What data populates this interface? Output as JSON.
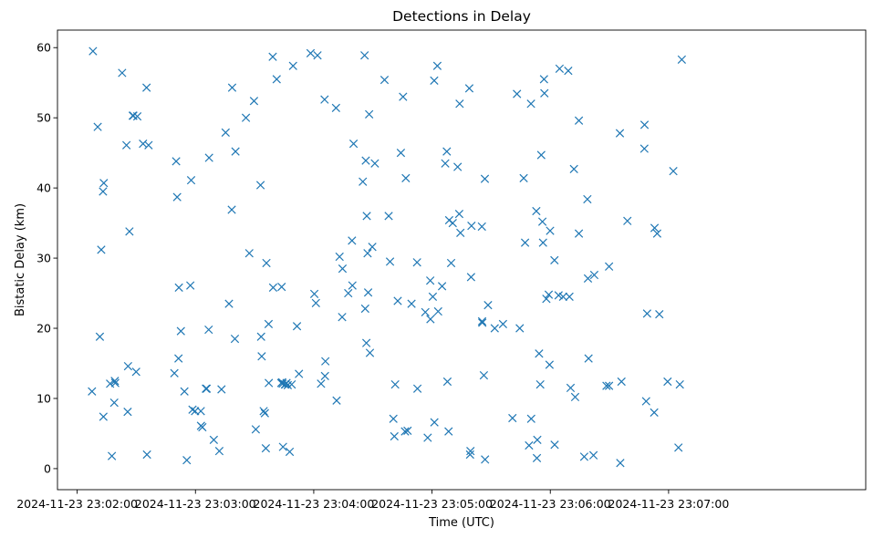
{
  "chart_data": {
    "type": "scatter",
    "title": "Detections in Delay",
    "xlabel": "Time (UTC)",
    "ylabel": "Bistatic Delay (km)",
    "marker": "x",
    "color": "#1f77b4",
    "grid": false,
    "xlim": [
      -10,
      400
    ],
    "ylim": [
      -3,
      62.5
    ],
    "x_ticks": [
      {
        "value": 0,
        "label": "2024-11-23 23:02:00"
      },
      {
        "value": 60,
        "label": "2024-11-23 23:03:00"
      },
      {
        "value": 120,
        "label": "2024-11-23 23:04:00"
      },
      {
        "value": 180,
        "label": "2024-11-23 23:05:00"
      },
      {
        "value": 240,
        "label": "2024-11-23 23:06:00"
      },
      {
        "value": 300,
        "label": "2024-11-23 23:07:00"
      }
    ],
    "y_ticks": [
      {
        "value": 0,
        "label": "0"
      },
      {
        "value": 10,
        "label": "10"
      },
      {
        "value": 20,
        "label": "20"
      },
      {
        "value": 30,
        "label": "30"
      },
      {
        "value": 40,
        "label": "40"
      },
      {
        "value": 50,
        "label": "50"
      },
      {
        "value": 60,
        "label": "60"
      }
    ],
    "series": [
      {
        "name": "detections",
        "x": [
          7.5,
          8.0,
          10.4,
          11.5,
          12.2,
          13.1,
          13.3,
          13.5,
          16.7,
          17.6,
          18.8,
          19.1,
          19.3,
          22.8,
          25.0,
          25.6,
          25.8,
          26.5,
          28.2,
          28.5,
          29.9,
          30.5,
          33.4,
          35.2,
          35.4,
          36.2,
          49.3,
          50.2,
          50.7,
          51.4,
          51.6,
          52.6,
          54.4,
          55.6,
          57.4,
          57.8,
          58.5,
          59.8,
          62.7,
          62.8,
          63.5,
          65.3,
          65.7,
          66.7,
          66.9,
          69.3,
          72.1,
          73.2,
          75.3,
          77.0,
          78.4,
          78.6,
          80.0,
          80.3,
          85.6,
          87.3,
          89.7,
          90.6,
          93.0,
          93.3,
          93.6,
          94.6,
          95.2,
          95.7,
          96.0,
          97.1,
          97.2,
          99.2,
          99.4,
          101.2,
          103.5,
          103.7,
          104.0,
          104.2,
          104.4,
          105.4,
          105.6,
          106.2,
          106.8,
          107.8,
          108.8,
          109.5,
          111.5,
          112.5,
          118.4,
          120.3,
          121.1,
          121.9,
          123.7,
          125.5,
          125.7,
          125.9,
          131.3,
          131.6,
          133.1,
          134.4,
          134.6,
          137.5,
          139.4,
          139.6,
          140.2,
          144.9,
          145.8,
          146.1,
          146.4,
          146.7,
          146.9,
          147.3,
          147.6,
          148.1,
          148.5,
          149.7,
          151.0,
          155.9,
          158.0,
          158.7,
          160.4,
          160.9,
          161.3,
          162.6,
          164.2,
          165.3,
          166.3,
          166.7,
          167.6,
          169.6,
          172.4,
          172.6,
          176.6,
          177.8,
          179.1,
          179.2,
          180.4,
          181.1,
          181.2,
          182.7,
          183.1,
          185.1,
          186.7,
          187.5,
          187.8,
          188.4,
          188.7,
          189.7,
          190.5,
          193.0,
          193.8,
          194.0,
          194.4,
          198.9,
          199.3,
          199.5,
          199.8,
          200.0,
          205.3,
          205.4,
          205.5,
          206.3,
          206.8,
          206.9,
          208.4,
          211.8,
          216.0,
          220.8,
          223.1,
          224.5,
          226.5,
          227.2,
          229.2,
          230.2,
          230.3,
          232.9,
          233.2,
          233.4,
          234.3,
          234.9,
          235.4,
          236.0,
          236.3,
          236.8,
          237.0,
          238.0,
          239.2,
          239.6,
          239.9,
          242.1,
          242.2,
          244.2,
          244.7,
          246.5,
          249.1,
          249.7,
          250.3,
          252.0,
          252.6,
          254.5,
          254.5,
          257.2,
          258.8,
          259.1,
          259.4,
          261.9,
          262.3,
          268.5,
          269.8,
          269.8,
          275.3,
          275.5,
          276.1,
          279.1,
          287.7,
          287.8,
          288.6,
          289.1,
          292.7,
          292.9,
          294.2,
          295.3,
          299.5,
          302.4,
          305.0,
          305.7,
          306.7
        ]
      }
    ]
  }
}
